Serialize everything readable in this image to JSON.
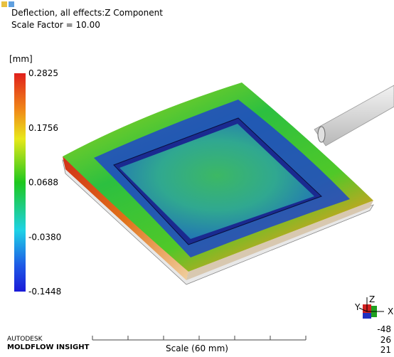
{
  "header": {
    "title": "Deflection, all effects:Z Component",
    "subtitle": "Scale Factor = 10.00"
  },
  "legend": {
    "unit": "[mm]",
    "labels": [
      "0.2825",
      "0.1756",
      "0.0688",
      "-0.0380",
      "-0.1448"
    ]
  },
  "triad": {
    "axes": [
      "X",
      "Y",
      "Z"
    ],
    "angles": [
      "-48",
      "26",
      "21"
    ]
  },
  "footer": {
    "brand": "AUTODESK",
    "product": "MOLDFLOW INSIGHT",
    "scale": "Scale (60 mm)"
  }
}
